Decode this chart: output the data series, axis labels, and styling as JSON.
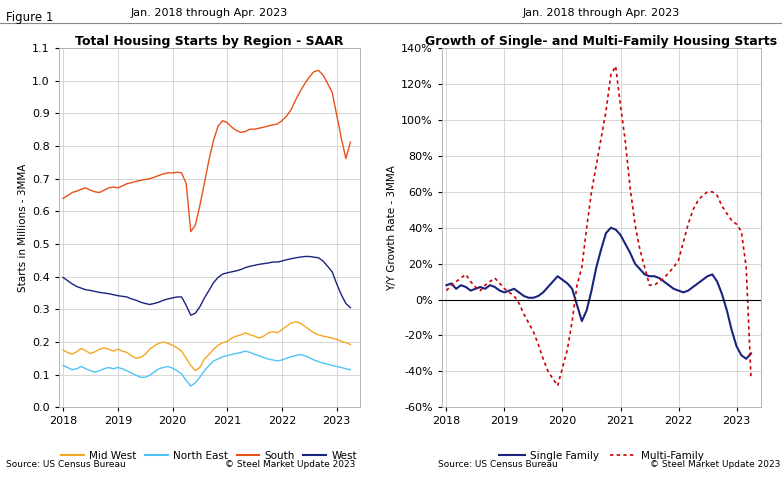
{
  "title_main": "Figure 1",
  "left_title": "Total Housing Starts by Region - SAAR",
  "left_subtitle": "Jan. 2018 through Apr. 2023",
  "right_title": "Growth of Single- and Multi-Family Housing Starts",
  "right_subtitle": "Jan. 2018 through Apr. 2023",
  "left_ylabel": "Starts in Millions - 3MMA",
  "right_ylabel": "Y/Y Growth Rate - 3MMA",
  "left_source": "Source: US Census Bureau",
  "left_copyright": "© Steel Market Update 2023",
  "right_source": "Source: US Census Bureau",
  "right_copyright": "© Steel Market Update 2023",
  "bg_color": "#ffffff",
  "plot_bg_color": "#ffffff",
  "colors": {
    "midwest": "#f5a623",
    "northeast": "#4fc3f7",
    "south": "#e8521a",
    "west": "#1a237e"
  },
  "right_colors": {
    "single": "#1a237e",
    "multi": "#cc0000"
  },
  "left_ylim": [
    0.0,
    1.1
  ],
  "right_ylim": [
    -0.6,
    1.4
  ],
  "left_yticks": [
    0.0,
    0.1,
    0.2,
    0.3,
    0.4,
    0.5,
    0.6,
    0.7,
    0.8,
    0.9,
    1.0,
    1.1
  ],
  "right_yticks": [
    -0.6,
    -0.4,
    -0.2,
    0.0,
    0.2,
    0.4,
    0.6,
    0.8,
    1.0,
    1.2,
    1.4
  ],
  "xticks": [
    2018,
    2019,
    2020,
    2021,
    2022,
    2023
  ],
  "midwest": [
    0.175,
    0.168,
    0.163,
    0.17,
    0.18,
    0.173,
    0.165,
    0.17,
    0.178,
    0.182,
    0.178,
    0.172,
    0.178,
    0.172,
    0.168,
    0.158,
    0.15,
    0.153,
    0.162,
    0.178,
    0.188,
    0.196,
    0.2,
    0.196,
    0.19,
    0.182,
    0.172,
    0.15,
    0.128,
    0.112,
    0.122,
    0.148,
    0.162,
    0.178,
    0.19,
    0.198,
    0.202,
    0.212,
    0.218,
    0.222,
    0.228,
    0.222,
    0.218,
    0.212,
    0.218,
    0.228,
    0.232,
    0.228,
    0.238,
    0.248,
    0.258,
    0.262,
    0.258,
    0.248,
    0.238,
    0.228,
    0.222,
    0.218,
    0.215,
    0.212,
    0.208,
    0.202,
    0.198,
    0.192
  ],
  "northeast": [
    0.128,
    0.122,
    0.115,
    0.118,
    0.125,
    0.118,
    0.112,
    0.108,
    0.112,
    0.118,
    0.122,
    0.118,
    0.122,
    0.118,
    0.112,
    0.105,
    0.098,
    0.092,
    0.092,
    0.098,
    0.108,
    0.118,
    0.122,
    0.125,
    0.12,
    0.112,
    0.102,
    0.082,
    0.065,
    0.075,
    0.092,
    0.112,
    0.128,
    0.142,
    0.148,
    0.155,
    0.158,
    0.162,
    0.165,
    0.168,
    0.172,
    0.168,
    0.162,
    0.158,
    0.152,
    0.148,
    0.145,
    0.142,
    0.145,
    0.15,
    0.155,
    0.158,
    0.162,
    0.158,
    0.152,
    0.145,
    0.14,
    0.135,
    0.132,
    0.128,
    0.125,
    0.122,
    0.118,
    0.115
  ],
  "south": [
    0.64,
    0.648,
    0.658,
    0.662,
    0.668,
    0.672,
    0.665,
    0.66,
    0.658,
    0.665,
    0.672,
    0.675,
    0.672,
    0.678,
    0.685,
    0.688,
    0.692,
    0.695,
    0.698,
    0.7,
    0.705,
    0.71,
    0.715,
    0.718,
    0.718,
    0.72,
    0.718,
    0.685,
    0.538,
    0.558,
    0.618,
    0.688,
    0.758,
    0.818,
    0.862,
    0.878,
    0.872,
    0.858,
    0.848,
    0.842,
    0.845,
    0.852,
    0.852,
    0.855,
    0.858,
    0.862,
    0.865,
    0.868,
    0.878,
    0.892,
    0.912,
    0.942,
    0.968,
    0.992,
    1.012,
    1.028,
    1.032,
    1.018,
    0.992,
    0.965,
    0.895,
    0.825,
    0.762,
    0.812
  ],
  "west": [
    0.398,
    0.388,
    0.378,
    0.37,
    0.365,
    0.36,
    0.358,
    0.355,
    0.352,
    0.35,
    0.348,
    0.345,
    0.342,
    0.34,
    0.338,
    0.332,
    0.328,
    0.322,
    0.318,
    0.315,
    0.318,
    0.322,
    0.328,
    0.332,
    0.335,
    0.338,
    0.338,
    0.312,
    0.282,
    0.288,
    0.308,
    0.335,
    0.358,
    0.382,
    0.398,
    0.408,
    0.412,
    0.415,
    0.418,
    0.422,
    0.428,
    0.432,
    0.435,
    0.438,
    0.44,
    0.442,
    0.445,
    0.445,
    0.448,
    0.452,
    0.455,
    0.458,
    0.46,
    0.462,
    0.462,
    0.46,
    0.458,
    0.448,
    0.432,
    0.415,
    0.378,
    0.345,
    0.318,
    0.305
  ],
  "single_family": [
    0.08,
    0.09,
    0.06,
    0.08,
    0.07,
    0.05,
    0.06,
    0.07,
    0.06,
    0.08,
    0.07,
    0.05,
    0.04,
    0.05,
    0.06,
    0.04,
    0.02,
    0.01,
    0.01,
    0.02,
    0.04,
    0.07,
    0.1,
    0.13,
    0.11,
    0.09,
    0.06,
    -0.03,
    -0.12,
    -0.06,
    0.05,
    0.18,
    0.28,
    0.37,
    0.4,
    0.39,
    0.36,
    0.31,
    0.26,
    0.2,
    0.17,
    0.14,
    0.13,
    0.13,
    0.12,
    0.1,
    0.08,
    0.06,
    0.05,
    0.04,
    0.05,
    0.07,
    0.09,
    0.11,
    0.13,
    0.14,
    0.1,
    0.03,
    -0.06,
    -0.17,
    -0.26,
    -0.31,
    -0.33,
    -0.3
  ],
  "multi_family": [
    0.05,
    0.08,
    0.1,
    0.12,
    0.14,
    0.1,
    0.07,
    0.05,
    0.08,
    0.1,
    0.12,
    0.09,
    0.06,
    0.04,
    0.02,
    -0.02,
    -0.08,
    -0.13,
    -0.18,
    -0.25,
    -0.33,
    -0.4,
    -0.44,
    -0.48,
    -0.38,
    -0.28,
    -0.12,
    0.08,
    0.18,
    0.4,
    0.6,
    0.75,
    0.9,
    1.05,
    1.25,
    1.3,
    1.08,
    0.88,
    0.62,
    0.42,
    0.28,
    0.18,
    0.08,
    0.08,
    0.1,
    0.12,
    0.15,
    0.18,
    0.22,
    0.32,
    0.42,
    0.5,
    0.55,
    0.58,
    0.6,
    0.6,
    0.58,
    0.52,
    0.48,
    0.44,
    0.42,
    0.38,
    0.18,
    -0.44
  ]
}
